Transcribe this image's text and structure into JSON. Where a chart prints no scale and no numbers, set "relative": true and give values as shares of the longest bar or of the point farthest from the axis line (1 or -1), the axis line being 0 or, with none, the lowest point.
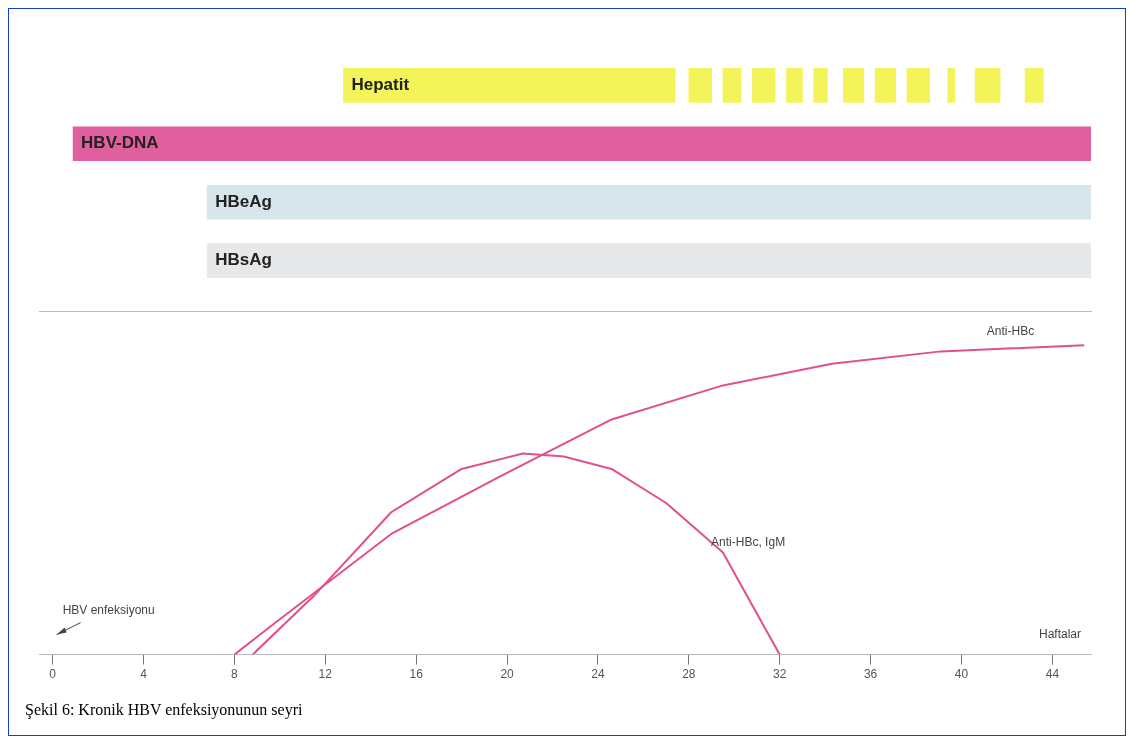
{
  "chart_data": [
    {
      "type": "bar",
      "orientation": "horizontal",
      "categories": [
        "Hepatit",
        "HBV-DNA",
        "HBeAg",
        "HBsAg"
      ],
      "xlim": [
        -0.6,
        45.7
      ],
      "xticks": [
        0,
        4,
        8,
        12,
        16,
        20,
        24,
        28,
        32,
        36,
        40,
        44
      ],
      "tick_labels": "y",
      "series": [
        {
          "colors": [
            "#f3f35a",
            "#e0609f",
            "#d6e6ea",
            "#e6e8ea"
          ],
          "base": [
            12.8,
            0.9,
            6.8,
            6.8
          ],
          "values": [
            14.6,
            44.8,
            38.9,
            38.9
          ]
        },
        {
          "color": "#f3f35a",
          "base": [
            28.0,
            null,
            null,
            null
          ],
          "values": [
            1.0,
            null,
            null,
            null
          ]
        },
        {
          "color": "#f3f35a",
          "base": [
            29.5,
            null,
            null,
            null
          ],
          "values": [
            0.8,
            null,
            null,
            null
          ]
        },
        {
          "color": "#f3f35a",
          "base": [
            30.8,
            null,
            null,
            null
          ],
          "values": [
            1.0,
            null,
            null,
            null
          ]
        },
        {
          "color": "#f3f35a",
          "base": [
            32.3,
            null,
            null,
            null
          ],
          "values": [
            0.7,
            null,
            null,
            null
          ]
        },
        {
          "color": "#f3f35a",
          "base": [
            33.5,
            null,
            null,
            null
          ],
          "values": [
            0.6,
            null,
            null,
            null
          ]
        },
        {
          "color": "#f3f35a",
          "base": [
            34.8,
            null,
            null,
            null
          ],
          "values": [
            0.9,
            null,
            null,
            null
          ]
        },
        {
          "color": "#f3f35a",
          "base": [
            36.2,
            null,
            null,
            null
          ],
          "values": [
            0.9,
            null,
            null,
            null
          ]
        },
        {
          "color": "#f3f35a",
          "base": [
            37.6,
            null,
            null,
            null
          ],
          "values": [
            1.0,
            null,
            null,
            null
          ]
        },
        {
          "color": "#f3f35a",
          "base": [
            39.4,
            null,
            null,
            null
          ],
          "values": [
            0.3,
            null,
            null,
            null
          ]
        },
        {
          "color": "#f3f35a",
          "base": [
            40.6,
            null,
            null,
            null
          ],
          "values": [
            1.1,
            null,
            null,
            null
          ]
        },
        {
          "color": "#f3f35a",
          "base": [
            42.8,
            null,
            null,
            null
          ],
          "values": [
            0.8,
            null,
            null,
            null
          ]
        }
      ]
    },
    {
      "type": "line",
      "relative": true,
      "xlabel": "Haftalar",
      "xlim": [
        -0.6,
        45.7
      ],
      "xticks": [
        0,
        4,
        8,
        12,
        16,
        20,
        24,
        28,
        32,
        36,
        40,
        44
      ],
      "marker": "none",
      "annotations": [
        "HBV enfeksiyonu",
        "Şekil 6: Kronik HBV enfeksiyonunun seyri"
      ],
      "series": [
        {
          "name": "Anti-HBc",
          "color": "#e0508f",
          "x": [
            8,
            10.1,
            14.9,
            19.8,
            24.6,
            29.5,
            34.3,
            39.1,
            45.4
          ],
          "values": [
            0,
            0.12,
            0.39,
            0.58,
            0.76,
            0.87,
            0.94,
            0.98,
            1
          ]
        },
        {
          "name": "Anti-HBc, IgM",
          "color": "#e0508f",
          "x": [
            8.8,
            11.5,
            14.9,
            18,
            20.7,
            22.5,
            24.6,
            27,
            29.5,
            32
          ],
          "values": [
            0,
            0.19,
            0.46,
            0.6,
            0.65,
            0.64,
            0.6,
            0.49,
            0.33,
            0
          ]
        }
      ]
    }
  ]
}
